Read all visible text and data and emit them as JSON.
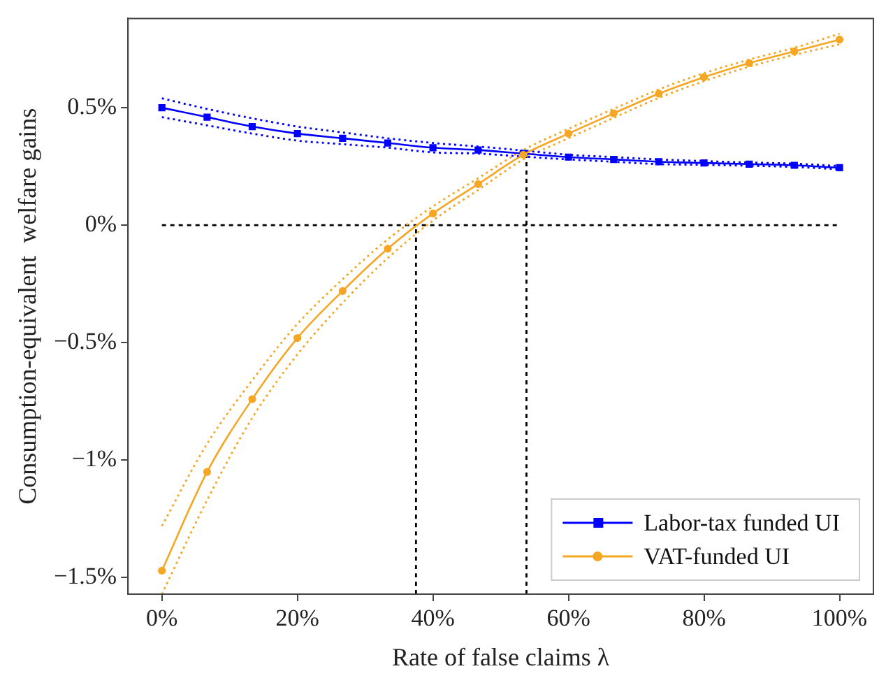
{
  "chart_data": {
    "type": "line",
    "xlabel": "Rate of false claims λ",
    "ylabel": "Consumption-equivalent  welfare gains",
    "xlim": [
      -5,
      105
    ],
    "ylim": [
      -1.57,
      0.88
    ],
    "xticks": [
      {
        "value": 0,
        "label": "0%"
      },
      {
        "value": 20,
        "label": "20%"
      },
      {
        "value": 40,
        "label": "40%"
      },
      {
        "value": 60,
        "label": "60%"
      },
      {
        "value": 80,
        "label": "80%"
      },
      {
        "value": 100,
        "label": "100%"
      }
    ],
    "yticks": [
      {
        "value": -1.5,
        "label": "−1.5%"
      },
      {
        "value": -1,
        "label": "−1%"
      },
      {
        "value": -0.5,
        "label": "−0.5%"
      },
      {
        "value": 0,
        "label": "0%"
      },
      {
        "value": 0.5,
        "label": "0.5%"
      }
    ],
    "grid": false,
    "legend": "bottom right",
    "series": [
      {
        "name": "Labor-tax funded UI",
        "color": "#0000ff",
        "marker": "square",
        "x": [
          0,
          6.67,
          13.33,
          20,
          26.67,
          33.33,
          40,
          46.67,
          53.33,
          60,
          66.67,
          73.33,
          80,
          86.67,
          93.33,
          100
        ],
        "values": [
          0.5,
          0.46,
          0.42,
          0.39,
          0.37,
          0.35,
          0.33,
          0.32,
          0.305,
          0.29,
          0.28,
          0.27,
          0.265,
          0.26,
          0.255,
          0.245
        ]
      },
      {
        "color": "#0000ff",
        "marker": "none",
        "line_style": "dotted",
        "x": [
          0,
          6.67,
          13.33,
          20,
          26.67,
          33.33,
          40,
          46.67,
          53.33,
          60,
          66.67,
          73.33,
          80,
          86.67,
          93.33,
          100
        ],
        "values": [
          0.54,
          0.495,
          0.455,
          0.42,
          0.395,
          0.37,
          0.35,
          0.335,
          0.318,
          0.3,
          0.29,
          0.28,
          0.273,
          0.267,
          0.262,
          0.252
        ]
      },
      {
        "color": "#0000ff",
        "marker": "none",
        "line_style": "dotted",
        "x": [
          0,
          6.67,
          13.33,
          20,
          26.67,
          33.33,
          40,
          46.67,
          53.33,
          60,
          66.67,
          73.33,
          80,
          86.67,
          93.33,
          100
        ],
        "values": [
          0.46,
          0.425,
          0.39,
          0.36,
          0.345,
          0.33,
          0.31,
          0.305,
          0.292,
          0.28,
          0.27,
          0.26,
          0.257,
          0.253,
          0.248,
          0.238
        ]
      },
      {
        "name": "VAT-funded UI",
        "color": "#f5a623",
        "marker": "circle",
        "x": [
          0,
          6.67,
          13.33,
          20,
          26.67,
          33.33,
          40,
          46.67,
          53.33,
          60,
          66.67,
          73.33,
          80,
          86.67,
          93.33,
          100
        ],
        "values": [
          -1.47,
          -1.05,
          -0.74,
          -0.48,
          -0.28,
          -0.1,
          0.05,
          0.175,
          0.3,
          0.39,
          0.476,
          0.56,
          0.63,
          0.69,
          0.74,
          0.79
        ]
      },
      {
        "color": "#f5a623",
        "marker": "none",
        "line_style": "dotted",
        "x": [
          0,
          6.67,
          13.33,
          20,
          26.67,
          33.33,
          40,
          46.67,
          53.33,
          60,
          66.67,
          73.33,
          80,
          86.67,
          93.33,
          100
        ],
        "values": [
          -1.28,
          -0.93,
          -0.66,
          -0.42,
          -0.23,
          -0.06,
          0.08,
          0.2,
          0.32,
          0.41,
          0.495,
          0.578,
          0.647,
          0.705,
          0.755,
          0.815
        ]
      },
      {
        "color": "#f5a623",
        "marker": "none",
        "line_style": "dotted",
        "x": [
          0,
          6.67,
          13.33,
          20,
          26.67,
          33.33,
          40,
          46.67,
          53.33,
          60,
          66.67,
          73.33,
          80,
          86.67,
          93.33,
          100
        ],
        "values": [
          -1.57,
          -1.17,
          -0.82,
          -0.55,
          -0.33,
          -0.14,
          0.02,
          0.15,
          0.28,
          0.37,
          0.457,
          0.542,
          0.613,
          0.675,
          0.725,
          0.77
        ]
      },
      {
        "color": "#000000",
        "marker": "none",
        "line_style": "dashed",
        "x": [
          0,
          100
        ],
        "values": [
          0,
          0
        ]
      },
      {
        "color": "#000000",
        "marker": "none",
        "line_style": "dashed",
        "x": [
          37.5,
          37.5
        ],
        "values": [
          -1.57,
          0
        ]
      },
      {
        "color": "#000000",
        "marker": "none",
        "line_style": "dashed",
        "x": [
          53.8,
          53.8
        ],
        "values": [
          -1.57,
          0.3
        ]
      }
    ]
  }
}
